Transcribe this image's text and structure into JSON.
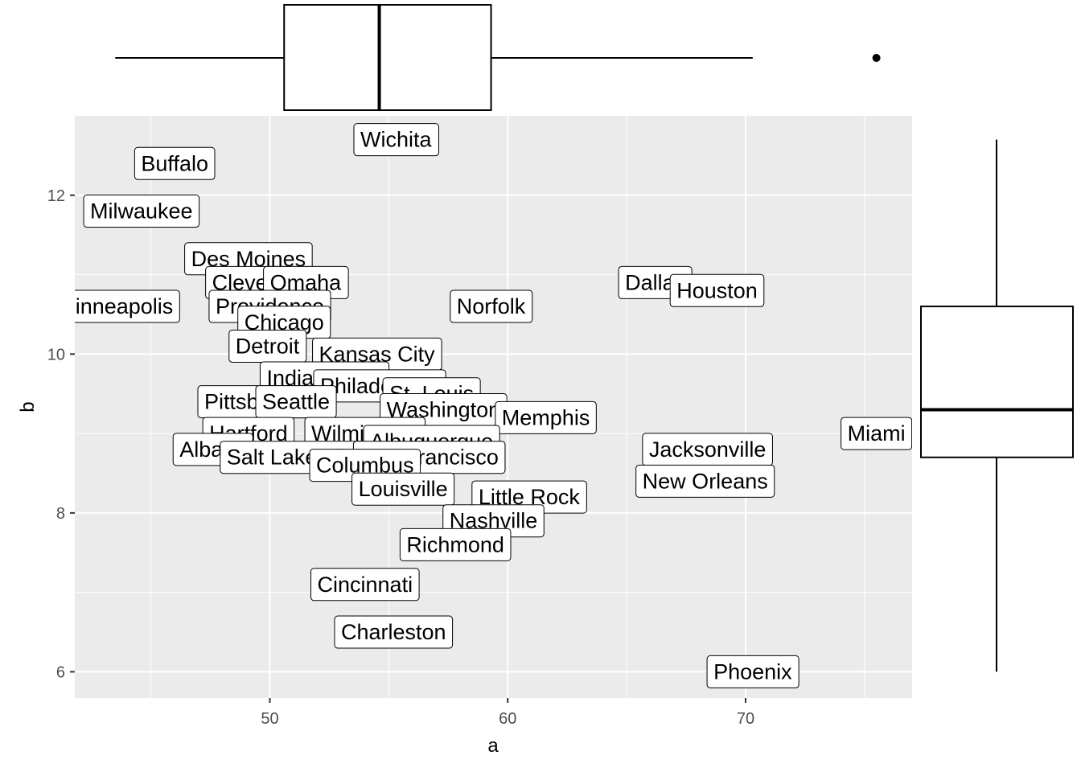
{
  "chart_data": {
    "type": "scatter",
    "xlabel": "a",
    "ylabel": "b",
    "xlim": [
      41.8,
      77.0
    ],
    "ylim": [
      5.67,
      13.0
    ],
    "x_ticks": [
      50,
      60,
      70
    ],
    "y_ticks": [
      6,
      8,
      10,
      12
    ],
    "x_minor_ticks": [
      45,
      55,
      65,
      75
    ],
    "y_minor_ticks": [
      7,
      9,
      11
    ],
    "grid": true,
    "points": [
      {
        "label": "Wichita",
        "x": 55.3,
        "y": 12.7
      },
      {
        "label": "Buffalo",
        "x": 46.0,
        "y": 12.4
      },
      {
        "label": "Milwaukee",
        "x": 44.6,
        "y": 11.8
      },
      {
        "label": "Des Moines",
        "x": 49.1,
        "y": 11.2
      },
      {
        "label": "Cleveland",
        "x": 49.6,
        "y": 10.9
      },
      {
        "label": "Omaha",
        "x": 51.5,
        "y": 10.9
      },
      {
        "label": "Minneapolis",
        "x": 43.5,
        "y": 10.6
      },
      {
        "label": "Providence",
        "x": 50.0,
        "y": 10.6
      },
      {
        "label": "Chicago",
        "x": 50.6,
        "y": 10.4
      },
      {
        "label": "Detroit",
        "x": 49.9,
        "y": 10.1
      },
      {
        "label": "Kansas City",
        "x": 54.5,
        "y": 10.0
      },
      {
        "label": "Indianapolis",
        "x": 52.3,
        "y": 9.7
      },
      {
        "label": "Philadelphia",
        "x": 54.6,
        "y": 9.6
      },
      {
        "label": "St. Louis",
        "x": 56.8,
        "y": 9.5
      },
      {
        "label": "Pittsburgh",
        "x": 49.3,
        "y": 9.4
      },
      {
        "label": "Seattle",
        "x": 51.1,
        "y": 9.4
      },
      {
        "label": "Washington",
        "x": 57.3,
        "y": 9.3
      },
      {
        "label": "Memphis",
        "x": 61.6,
        "y": 9.2
      },
      {
        "label": "Hartford",
        "x": 49.1,
        "y": 9.0
      },
      {
        "label": "Wilmington",
        "x": 54.0,
        "y": 9.0
      },
      {
        "label": "Albuquerque",
        "x": 56.8,
        "y": 8.9
      },
      {
        "label": "Albany",
        "x": 47.6,
        "y": 8.8
      },
      {
        "label": "Jacksonville",
        "x": 68.4,
        "y": 8.8
      },
      {
        "label": "Salt Lake City",
        "x": 51.0,
        "y": 8.7
      },
      {
        "label": "San Francisco",
        "x": 56.7,
        "y": 8.7
      },
      {
        "label": "Columbus",
        "x": 54.0,
        "y": 8.6
      },
      {
        "label": "New Orleans",
        "x": 68.3,
        "y": 8.4
      },
      {
        "label": "Louisville",
        "x": 55.6,
        "y": 8.3
      },
      {
        "label": "Little Rock",
        "x": 60.9,
        "y": 8.2
      },
      {
        "label": "Nashville",
        "x": 59.4,
        "y": 7.9
      },
      {
        "label": "Richmond",
        "x": 57.8,
        "y": 7.6
      },
      {
        "label": "Cincinnati",
        "x": 54.0,
        "y": 7.1
      },
      {
        "label": "Charleston",
        "x": 55.2,
        "y": 6.5
      },
      {
        "label": "Phoenix",
        "x": 70.3,
        "y": 6.0
      },
      {
        "label": "Dallas",
        "x": 66.2,
        "y": 10.9
      },
      {
        "label": "Houston",
        "x": 68.8,
        "y": 10.8
      },
      {
        "label": "Norfolk",
        "x": 59.3,
        "y": 10.6
      },
      {
        "label": "Miami",
        "x": 75.5,
        "y": 9.0
      }
    ],
    "marginal_boxplot_x": {
      "min": 43.5,
      "q1": 50.6,
      "median": 54.6,
      "q3": 59.3,
      "max": 70.3,
      "outliers": [
        75.5
      ]
    },
    "marginal_boxplot_y": {
      "min": 6.0,
      "q1": 8.7,
      "median": 9.3,
      "q3": 10.6,
      "max": 12.7,
      "outliers": []
    },
    "colors": {
      "panel": "#ebebeb",
      "grid": "#ffffff",
      "label_fill": "#ffffff",
      "label_border": "#000000",
      "text": "#000000",
      "tick_text": "#4d4d4d"
    }
  }
}
